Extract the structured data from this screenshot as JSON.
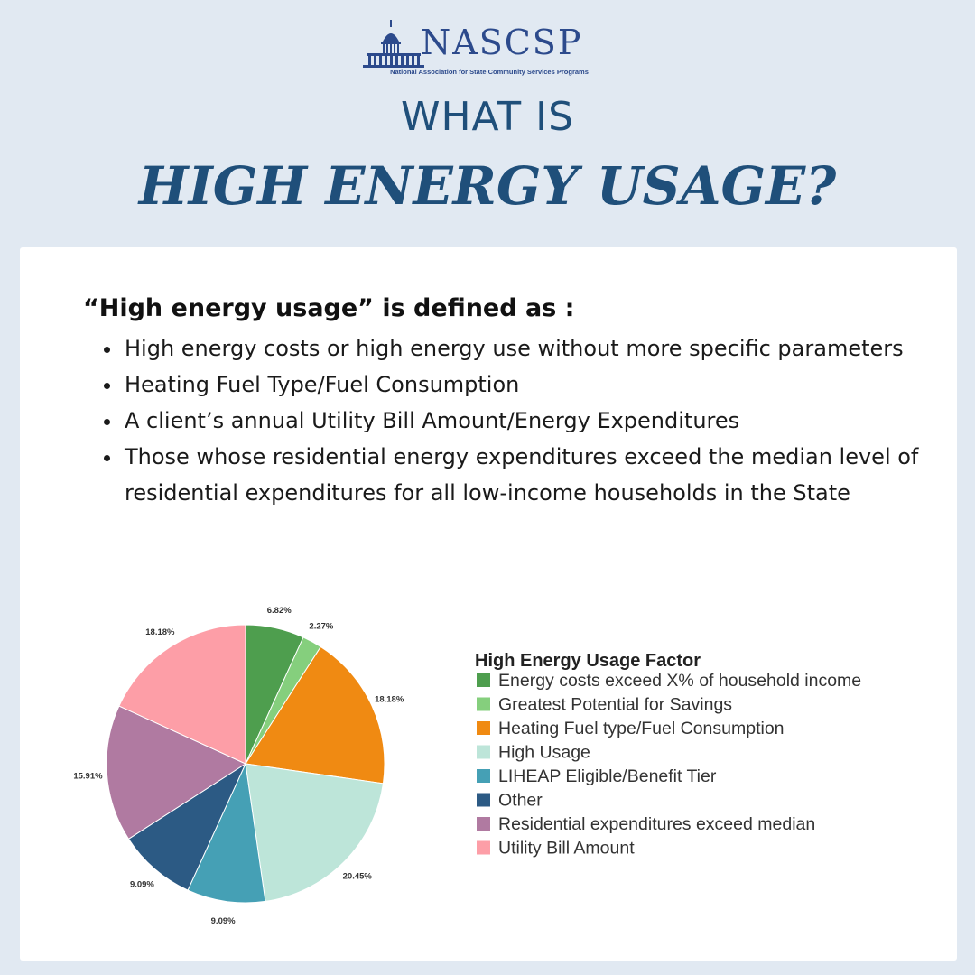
{
  "logo": {
    "name": "NASCSP",
    "tagline": "National Association for State Community Services Programs"
  },
  "header": {
    "line1": "WHAT IS",
    "line2": "HIGH ENERGY USAGE?"
  },
  "definition": {
    "title": "“High energy usage” is defined as :",
    "items": [
      "High energy costs or high energy use without more specific parameters",
      "Heating Fuel Type/Fuel Consumption",
      "A client’s annual Utility Bill Amount/Energy Expenditures",
      "Those whose residential energy expenditures exceed the median level of residential expenditures for all low-income households in the State"
    ]
  },
  "colors": {
    "background": "#e1e9f2",
    "heading": "#1f4f7a",
    "logo": "#2c4a8c"
  },
  "chart_data": {
    "type": "pie",
    "title": "",
    "legend_title": "High Energy Usage Factor",
    "legend_position": "right",
    "categories": [
      "Energy costs exceed X% of household income",
      "Greatest Potential for Savings",
      "Heating Fuel type/Fuel Consumption",
      "High Usage",
      "LIHEAP Eligible/Benefit Tier",
      "Other",
      "Residential expenditures exceed median",
      "Utility Bill Amount"
    ],
    "values": [
      6.82,
      2.27,
      18.18,
      20.45,
      9.09,
      9.09,
      15.91,
      18.18
    ],
    "labels": [
      "6.82%",
      "2.27%",
      "18.18%",
      "20.45%",
      "9.09%",
      "9.09%",
      "15.91%",
      "18.18%"
    ],
    "colors": [
      "#4e9e4e",
      "#85cf7d",
      "#f08a12",
      "#bde5d9",
      "#45a0b5",
      "#2c5a84",
      "#b07aa1",
      "#fd9ea7"
    ]
  }
}
